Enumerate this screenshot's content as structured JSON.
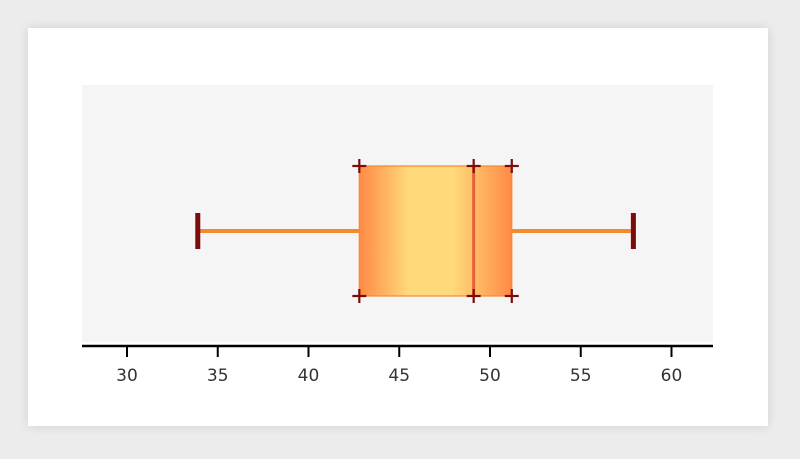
{
  "chart_data": {
    "type": "box",
    "title": "",
    "xlabel": "",
    "ylabel": "",
    "orientation": "horizontal",
    "xlim": [
      27.5,
      62.2
    ],
    "ticks": [
      30,
      35,
      40,
      45,
      50,
      55,
      60
    ],
    "tick_labels": [
      "30",
      "35",
      "40",
      "45",
      "50",
      "55",
      "60"
    ],
    "series": [
      {
        "min": 33.9,
        "q1": 42.8,
        "median": 49.1,
        "q3": 51.2,
        "max": 57.9
      }
    ],
    "grid": false,
    "legend": "none",
    "colors": {
      "background": "#ececec",
      "card": "#ffffff",
      "plot_area": "#f5f5f5",
      "whisker": "#f48a2e",
      "whisker_cap": "#7a0c0c",
      "box_light": "#ffd97a",
      "box_dark": "#ff8a45",
      "median": "#e8603a",
      "corner_marker": "#7a0c0c",
      "axis": "#000000",
      "tick_label": "#333333"
    }
  }
}
